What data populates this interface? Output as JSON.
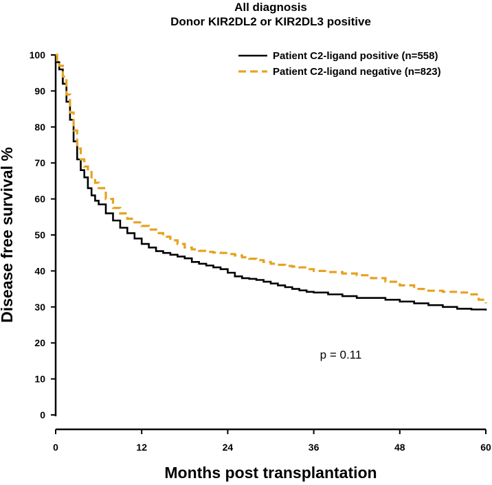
{
  "chart_data": {
    "type": "line",
    "title_lines": [
      "All diagnosis",
      "Donor KIR2DL2 or KIR2DL3 positive"
    ],
    "xlabel": "Months post transplantation",
    "ylabel": "Disease free survival %",
    "xlim": [
      0,
      60
    ],
    "ylim": [
      0,
      100
    ],
    "xticks": [
      0,
      12,
      24,
      36,
      48,
      60
    ],
    "yticks": [
      0,
      10,
      20,
      30,
      40,
      50,
      60,
      70,
      80,
      90,
      100
    ],
    "grid": false,
    "legend_position": "top-right",
    "annotation": "p = 0.11",
    "series": [
      {
        "name": "Patient C2-ligand positive (n=558)",
        "color": "#000000",
        "style": "solid",
        "x": [
          0,
          0.2,
          0.5,
          1,
          1.5,
          2,
          2.5,
          3,
          3.5,
          4,
          4.5,
          5,
          5.5,
          6,
          7,
          8,
          9,
          10,
          11,
          12,
          13,
          14,
          15,
          16,
          17,
          18,
          19,
          20,
          21,
          22,
          23,
          24,
          25,
          26,
          27,
          28,
          29,
          30,
          31,
          32,
          33,
          34,
          35,
          36,
          38,
          40,
          42,
          44,
          46,
          48,
          50,
          52,
          54,
          56,
          58,
          60
        ],
        "y": [
          100,
          98,
          96,
          92,
          87,
          82,
          76,
          71,
          68,
          66,
          63,
          61,
          59.5,
          58.5,
          56,
          54,
          52,
          50.5,
          49,
          47.5,
          46.5,
          45.5,
          45,
          44.5,
          44,
          43.5,
          42.5,
          42,
          41.5,
          41,
          40.5,
          39.5,
          38.5,
          38,
          37.8,
          37.5,
          37,
          36.5,
          36,
          35.5,
          35,
          34.6,
          34.2,
          34,
          33.5,
          33,
          32.5,
          32.5,
          32,
          31.5,
          31,
          30.5,
          30,
          29.5,
          29.3,
          29
        ]
      },
      {
        "name": "Patient C2-ligand negative (n=823)",
        "color": "#E6A220",
        "style": "dashed",
        "x": [
          0,
          0.2,
          0.5,
          1,
          1.5,
          2,
          2.5,
          3,
          3.5,
          4,
          4.5,
          5,
          5.5,
          6,
          7,
          8,
          9,
          10,
          11,
          12,
          13,
          14,
          15,
          16,
          17,
          18,
          19,
          20,
          21,
          22,
          23,
          24,
          25,
          26,
          27,
          28,
          29,
          30,
          31,
          32,
          33,
          34,
          35,
          36,
          38,
          40,
          42,
          44,
          46,
          48,
          50,
          52,
          54,
          56,
          58,
          59,
          60
        ],
        "y": [
          100,
          98.5,
          97,
          94,
          89,
          84,
          79,
          74,
          71,
          69,
          67.5,
          66,
          64.5,
          63,
          60,
          57.5,
          56,
          54.5,
          53.5,
          52.5,
          51.5,
          50.5,
          49.5,
          48.5,
          47.5,
          46.5,
          46,
          45.6,
          45.3,
          45.1,
          45,
          44.7,
          44.3,
          43.8,
          43.4,
          43,
          42.5,
          42,
          41.7,
          41.4,
          41.2,
          41,
          40.5,
          40,
          39.7,
          39.3,
          38.8,
          38,
          37,
          36,
          35,
          34.5,
          34.2,
          34,
          33.5,
          32,
          31
        ]
      }
    ]
  }
}
